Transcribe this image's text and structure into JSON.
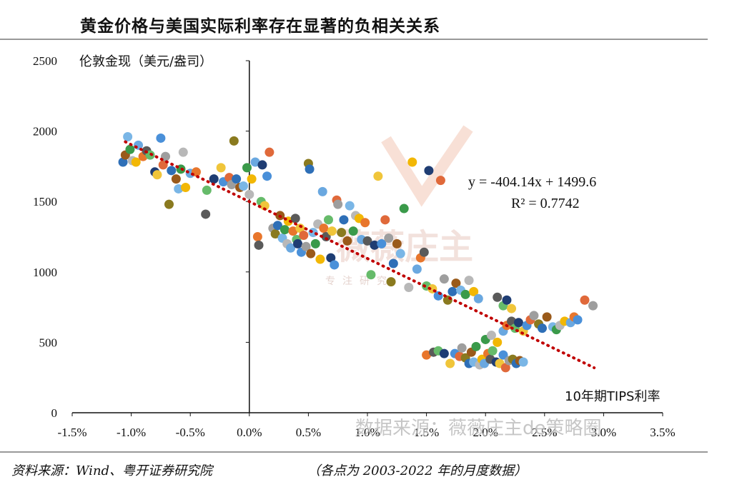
{
  "title": "黄金价格与美国实际利率存在显著的负相关关系",
  "footer": {
    "source": "资料来源：Wind、粤开证券研究院",
    "note": "（各点为 2003-2022 年的月度数据）"
  },
  "watermark": {
    "brand": "薇薇庄主",
    "tagline": "专注研究",
    "source": "数据来源：薇薇庄主de策略圈"
  },
  "colors": [
    "#2e6fb7",
    "#e8762c",
    "#9e9e9e",
    "#f2b705",
    "#4a90d9",
    "#3a9a4a",
    "#1f3d73",
    "#9a5a1a",
    "#5a5a5a",
    "#8a7a1f",
    "#6aa8e0",
    "#e0693a",
    "#b8b8b8",
    "#f0c53a",
    "#7ab6e6",
    "#66bb6a"
  ],
  "chart_data": {
    "type": "scatter",
    "title": "黄金价格与美国实际利率存在显著的负相关关系",
    "xlabel": "10年期TIPS利率",
    "ylabel": "伦敦金现（美元/盎司）",
    "xlim": [
      -1.5,
      3.5
    ],
    "ylim": [
      0,
      2500
    ],
    "xticks": [
      "-1.5%",
      "-1.0%",
      "-0.5%",
      "0.0%",
      "0.5%",
      "1.0%",
      "1.5%",
      "2.0%",
      "2.5%",
      "3.0%",
      "3.5%"
    ],
    "yticks": [
      "0",
      "500",
      "1000",
      "1500",
      "2000",
      "2500"
    ],
    "trendline": {
      "slope": -404.14,
      "intercept": 1499.6,
      "x_range": [
        -1.05,
        2.92
      ],
      "style": "dotted",
      "color": "#c00000"
    },
    "equation": "y = -404.14x + 1499.6",
    "r_squared": "R² = 0.7742",
    "points": [
      [
        -1.07,
        1780
      ],
      [
        -1.05,
        1830
      ],
      [
        -1.03,
        1960
      ],
      [
        -1.01,
        1870
      ],
      [
        -0.99,
        1790
      ],
      [
        -0.96,
        1780
      ],
      [
        -0.94,
        1900
      ],
      [
        -0.9,
        1820
      ],
      [
        -0.87,
        1860
      ],
      [
        -0.84,
        1830
      ],
      [
        -0.8,
        1710
      ],
      [
        -0.78,
        1690
      ],
      [
        -0.75,
        1950
      ],
      [
        -0.73,
        1760
      ],
      [
        -0.71,
        1820
      ],
      [
        -0.68,
        1480
      ],
      [
        -0.66,
        1720
      ],
      [
        -0.62,
        1660
      ],
      [
        -0.6,
        1590
      ],
      [
        -0.58,
        1730
      ],
      [
        -0.56,
        1850
      ],
      [
        -0.54,
        1600
      ],
      [
        -0.5,
        1700
      ],
      [
        -0.45,
        1710
      ],
      [
        -0.37,
        1410
      ],
      [
        -0.36,
        1580
      ],
      [
        -0.3,
        1660
      ],
      [
        -0.24,
        1740
      ],
      [
        -0.22,
        1640
      ],
      [
        -0.17,
        1670
      ],
      [
        -0.15,
        1620
      ],
      [
        -0.13,
        1930
      ],
      [
        -0.11,
        1660
      ],
      [
        -0.08,
        1600
      ],
      [
        -0.05,
        1610
      ],
      [
        -0.02,
        1740
      ],
      [
        0.0,
        1550
      ],
      [
        0.02,
        1660
      ],
      [
        0.05,
        1780
      ],
      [
        0.07,
        1250
      ],
      [
        0.08,
        1190
      ],
      [
        0.1,
        1500
      ],
      [
        0.11,
        1760
      ],
      [
        0.13,
        1470
      ],
      [
        0.15,
        1680
      ],
      [
        0.17,
        1850
      ],
      [
        0.2,
        1310
      ],
      [
        0.22,
        1270
      ],
      [
        0.24,
        1330
      ],
      [
        0.26,
        1400
      ],
      [
        0.28,
        1240
      ],
      [
        0.3,
        1300
      ],
      [
        0.32,
        1200
      ],
      [
        0.33,
        1360
      ],
      [
        0.35,
        1170
      ],
      [
        0.37,
        1290
      ],
      [
        0.39,
        1380
      ],
      [
        0.4,
        1230
      ],
      [
        0.41,
        1200
      ],
      [
        0.43,
        1310
      ],
      [
        0.44,
        1140
      ],
      [
        0.46,
        1260
      ],
      [
        0.48,
        1180
      ],
      [
        0.5,
        1770
      ],
      [
        0.51,
        1730
      ],
      [
        0.52,
        1130
      ],
      [
        0.54,
        1280
      ],
      [
        0.56,
        1200
      ],
      [
        0.58,
        1340
      ],
      [
        0.6,
        1090
      ],
      [
        0.62,
        1570
      ],
      [
        0.63,
        1310
      ],
      [
        0.65,
        1250
      ],
      [
        0.67,
        1370
      ],
      [
        0.69,
        1100
      ],
      [
        0.7,
        1290
      ],
      [
        0.72,
        1050
      ],
      [
        0.74,
        1510
      ],
      [
        0.75,
        1480
      ],
      [
        0.78,
        1280
      ],
      [
        0.8,
        1370
      ],
      [
        0.83,
        1220
      ],
      [
        0.85,
        1470
      ],
      [
        0.88,
        1290
      ],
      [
        0.9,
        1400
      ],
      [
        0.93,
        1380
      ],
      [
        0.95,
        1230
      ],
      [
        0.98,
        1350
      ],
      [
        1.0,
        1220
      ],
      [
        1.03,
        980
      ],
      [
        1.06,
        1190
      ],
      [
        1.09,
        1680
      ],
      [
        1.12,
        1200
      ],
      [
        1.15,
        1370
      ],
      [
        1.18,
        1240
      ],
      [
        1.2,
        930
      ],
      [
        1.22,
        1060
      ],
      [
        1.25,
        1200
      ],
      [
        1.28,
        1130
      ],
      [
        1.31,
        1450
      ],
      [
        1.35,
        890
      ],
      [
        1.38,
        1780
      ],
      [
        1.42,
        1020
      ],
      [
        1.45,
        1100
      ],
      [
        1.48,
        1140
      ],
      [
        1.5,
        900
      ],
      [
        1.52,
        1720
      ],
      [
        1.55,
        880
      ],
      [
        1.6,
        830
      ],
      [
        1.62,
        1650
      ],
      [
        1.65,
        950
      ],
      [
        1.68,
        800
      ],
      [
        1.72,
        860
      ],
      [
        1.75,
        920
      ],
      [
        1.79,
        870
      ],
      [
        1.83,
        840
      ],
      [
        1.86,
        940
      ],
      [
        1.9,
        860
      ],
      [
        1.94,
        810
      ],
      [
        1.5,
        410
      ],
      [
        1.56,
        430
      ],
      [
        1.6,
        440
      ],
      [
        1.65,
        420
      ],
      [
        1.7,
        350
      ],
      [
        1.74,
        420
      ],
      [
        1.78,
        400
      ],
      [
        1.8,
        460
      ],
      [
        1.83,
        390
      ],
      [
        1.86,
        350
      ],
      [
        1.88,
        430
      ],
      [
        1.9,
        360
      ],
      [
        1.92,
        470
      ],
      [
        1.95,
        340
      ],
      [
        1.97,
        380
      ],
      [
        1.99,
        350
      ],
      [
        2.02,
        420
      ],
      [
        2.04,
        380
      ],
      [
        2.06,
        440
      ],
      [
        2.09,
        360
      ],
      [
        2.12,
        350
      ],
      [
        2.15,
        410
      ],
      [
        2.17,
        320
      ],
      [
        2.2,
        370
      ],
      [
        2.23,
        380
      ],
      [
        2.26,
        350
      ],
      [
        2.29,
        370
      ],
      [
        2.32,
        360
      ],
      [
        2.0,
        520
      ],
      [
        2.05,
        550
      ],
      [
        2.1,
        500
      ],
      [
        2.15,
        580
      ],
      [
        2.18,
        620
      ],
      [
        2.22,
        650
      ],
      [
        2.25,
        600
      ],
      [
        2.28,
        640
      ],
      [
        2.32,
        580
      ],
      [
        2.35,
        620
      ],
      [
        2.38,
        660
      ],
      [
        2.41,
        690
      ],
      [
        2.45,
        630
      ],
      [
        2.48,
        600
      ],
      [
        2.52,
        680
      ],
      [
        2.57,
        610
      ],
      [
        2.6,
        590
      ],
      [
        2.63,
        620
      ],
      [
        2.67,
        650
      ],
      [
        2.72,
        640
      ],
      [
        2.75,
        680
      ],
      [
        2.1,
        820
      ],
      [
        2.15,
        760
      ],
      [
        2.18,
        800
      ],
      [
        2.22,
        740
      ],
      [
        2.78,
        660
      ],
      [
        2.84,
        800
      ],
      [
        2.91,
        760
      ]
    ]
  }
}
